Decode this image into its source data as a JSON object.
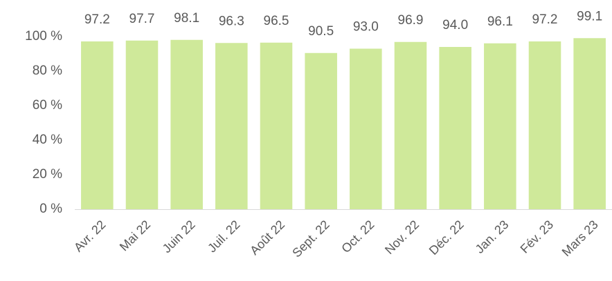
{
  "chart_data": {
    "type": "bar",
    "categories": [
      "Avr. 22",
      "Mai 22",
      "Juin 22",
      "Juil. 22",
      "Août 22",
      "Sept. 22",
      "Oct. 22",
      "Nov. 22",
      "Déc. 22",
      "Jan. 23",
      "Fév. 23",
      "Mars 23"
    ],
    "values": [
      97.2,
      97.7,
      98.1,
      96.3,
      96.5,
      90.5,
      93.0,
      96.9,
      94.0,
      96.1,
      97.2,
      99.1
    ],
    "data_labels": [
      "97.2",
      "97.7",
      "98.1",
      "96.3",
      "96.5",
      "90.5",
      "93.0",
      "96.9",
      "94.0",
      "96.1",
      "97.2",
      "99.1"
    ],
    "yticks": [
      "0 %",
      "20 %",
      "40 %",
      "60 %",
      "80 %",
      "100 %"
    ],
    "ylim": [
      0,
      100
    ],
    "grid": false,
    "legend": "none",
    "colors": {
      "bar": "#cfe99a",
      "text": "#595959",
      "axis": "#d9d9d9"
    }
  }
}
